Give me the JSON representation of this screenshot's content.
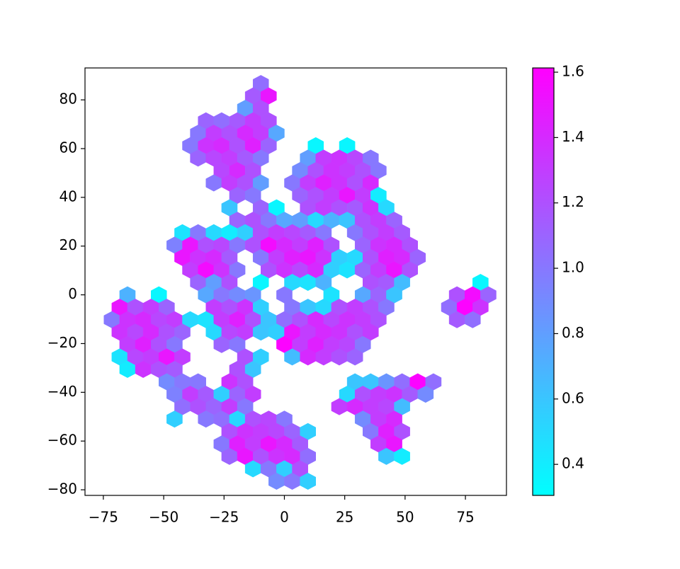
{
  "chart_data": {
    "type": "hexbin",
    "colormap": "cool",
    "xlim": [
      -82.6,
      92.0
    ],
    "ylim": [
      -82.3,
      93.1
    ],
    "clim": [
      0.305,
      1.613
    ],
    "xticks": [
      {
        "value": -75,
        "label": "−75"
      },
      {
        "value": -50,
        "label": "−50"
      },
      {
        "value": -25,
        "label": "−25"
      },
      0,
      25,
      50,
      75
    ],
    "yticks": [
      {
        "value": -80,
        "label": "−80"
      },
      {
        "value": -60,
        "label": "−60"
      },
      {
        "value": -40,
        "label": "−40"
      },
      {
        "value": -20,
        "label": "−20"
      },
      0,
      20,
      40,
      60,
      80
    ],
    "cticks": [
      0.4,
      0.6,
      0.8,
      {
        "value": 1,
        "label": "1.0"
      },
      1.2,
      1.4,
      1.6
    ],
    "x": [
      -9.75,
      -13,
      -6.5,
      -16.25,
      -9.75,
      -32.5,
      -26,
      -19.5,
      -13,
      -6.5,
      -35.75,
      -29.25,
      -22.75,
      -16.25,
      -9.75,
      -3.25,
      -39,
      -32.5,
      -26,
      -19.5,
      -13,
      -6.5,
      13,
      26,
      -35.75,
      -29.25,
      -22.75,
      -16.25,
      -9.75,
      9.75,
      16.25,
      22.75,
      29.25,
      35.75,
      -26,
      -19.5,
      -13,
      6.5,
      13,
      19.5,
      26,
      32.5,
      39,
      -29.25,
      -22.75,
      -16.25,
      -9.75,
      3.25,
      9.75,
      16.25,
      22.75,
      29.25,
      35.75,
      -19.5,
      -13,
      6.5,
      13,
      19.5,
      26,
      32.5,
      39,
      -22.75,
      -9.75,
      -3.25,
      9.75,
      16.25,
      22.75,
      29.25,
      35.75,
      42.25,
      -19.5,
      -13,
      -6.5,
      0,
      6.5,
      13,
      19.5,
      26,
      32.5,
      39,
      45.5,
      -42.25,
      -35.75,
      -29.25,
      -22.75,
      -16.25,
      -9.75,
      -3.25,
      3.25,
      9.75,
      16.25,
      29.25,
      35.75,
      42.25,
      48.75,
      -45.5,
      -39,
      -32.5,
      -26,
      -19.5,
      -13,
      -6.5,
      0,
      6.5,
      13,
      19.5,
      32.5,
      39,
      45.5,
      52,
      -42.25,
      -35.75,
      -29.25,
      -22.75,
      -9.75,
      -3.25,
      3.25,
      9.75,
      16.25,
      22.75,
      29.25,
      35.75,
      42.25,
      48.75,
      55.25,
      -39,
      -32.5,
      -26,
      -19.5,
      -6.5,
      0,
      6.5,
      13,
      19.5,
      26,
      32.5,
      39,
      45.5,
      52,
      -35.75,
      -29.25,
      -22.75,
      -9.75,
      3.25,
      9.75,
      16.25,
      35.75,
      42.25,
      48.75,
      81.25,
      -65,
      -52,
      -32.5,
      -26,
      -19.5,
      -13,
      0,
      19.5,
      32.5,
      39,
      45.5,
      71.5,
      78,
      84.5,
      -68.25,
      -61.75,
      -55.25,
      -48.75,
      -29.25,
      -22.75,
      -16.25,
      -9.75,
      3.25,
      9.75,
      16.25,
      22.75,
      29.25,
      35.75,
      42.25,
      68.25,
      74.75,
      81.25,
      -71.5,
      -65,
      -58.5,
      -52,
      -45.5,
      -39,
      -32.5,
      -26,
      -19.5,
      -13,
      -6.5,
      0,
      6.5,
      13,
      19.5,
      26,
      32.5,
      39,
      71.5,
      78,
      -68.25,
      -61.75,
      -55.25,
      -48.75,
      -42.25,
      -29.25,
      -22.75,
      -16.25,
      -9.75,
      -3.25,
      3.25,
      9.75,
      16.25,
      22.75,
      29.25,
      35.75,
      -65,
      -58.5,
      -52,
      -45.5,
      -26,
      -19.5,
      0,
      6.5,
      13,
      19.5,
      26,
      32.5,
      -68.25,
      -61.75,
      -55.25,
      -48.75,
      -42.25,
      -16.25,
      -9.75,
      3.25,
      9.75,
      16.25,
      22.75,
      29.25,
      -65,
      -58.5,
      -52,
      -45.5,
      -19.5,
      -13,
      -48.75,
      -42.25,
      -35.75,
      -22.75,
      -16.25,
      29.25,
      35.75,
      42.25,
      48.75,
      55.25,
      61.75,
      -45.5,
      -39,
      -32.5,
      -26,
      -19.5,
      -13,
      26,
      32.5,
      39,
      45.5,
      52,
      58.5,
      -42.25,
      -35.75,
      -29.25,
      -22.75,
      -16.25,
      22.75,
      29.25,
      35.75,
      42.25,
      48.75,
      -45.5,
      -32.5,
      -26,
      -19.5,
      -13,
      -6.5,
      0,
      32.5,
      39,
      45.5,
      -22.75,
      -16.25,
      -9.75,
      -3.25,
      3.25,
      9.75,
      35.75,
      42.25,
      48.75,
      -26,
      -19.5,
      -13,
      -6.5,
      0,
      6.5,
      39,
      45.5,
      -22.75,
      -16.25,
      -9.75,
      -3.25,
      3.25,
      9.75,
      42.25,
      48.75,
      -13,
      -6.5,
      0,
      6.5,
      -3.25,
      3.25,
      9.75
    ],
    "y": [
      86.7,
      81.6,
      81.6,
      76.5,
      76.5,
      71.4,
      71.4,
      71.4,
      71.4,
      71.4,
      66.3,
      66.3,
      66.3,
      66.3,
      66.3,
      66.3,
      61.2,
      61.2,
      61.2,
      61.2,
      61.2,
      61.2,
      61.2,
      61.2,
      56.1,
      56.1,
      56.1,
      56.1,
      56.1,
      56.1,
      56.1,
      56.1,
      56.1,
      56.1,
      51,
      51,
      51,
      51,
      51,
      51,
      51,
      51,
      51,
      45.9,
      45.9,
      45.9,
      45.9,
      45.9,
      45.9,
      45.9,
      45.9,
      45.9,
      45.9,
      40.8,
      40.8,
      40.8,
      40.8,
      40.8,
      40.8,
      40.8,
      40.8,
      35.7,
      35.7,
      35.7,
      35.7,
      35.7,
      35.7,
      35.7,
      35.7,
      35.7,
      30.6,
      30.6,
      30.6,
      30.6,
      30.6,
      30.6,
      30.6,
      30.6,
      30.6,
      30.6,
      30.6,
      25.5,
      25.5,
      25.5,
      25.5,
      25.5,
      25.5,
      25.5,
      25.5,
      25.5,
      25.5,
      25.5,
      25.5,
      25.5,
      25.5,
      20.4,
      20.4,
      20.4,
      20.4,
      20.4,
      20.4,
      20.4,
      20.4,
      20.4,
      20.4,
      20.4,
      20.4,
      20.4,
      20.4,
      20.4,
      15.3,
      15.3,
      15.3,
      15.3,
      15.3,
      15.3,
      15.3,
      15.3,
      15.3,
      15.3,
      15.3,
      15.3,
      15.3,
      15.3,
      15.3,
      10.2,
      10.2,
      10.2,
      10.2,
      10.2,
      10.2,
      10.2,
      10.2,
      10.2,
      10.2,
      10.2,
      10.2,
      10.2,
      10.2,
      5.1,
      5.1,
      5.1,
      5.1,
      5.1,
      5.1,
      5.1,
      5.1,
      5.1,
      5.1,
      5.1,
      0,
      0,
      0,
      0,
      0,
      0,
      0,
      0,
      0,
      0,
      0,
      0,
      0,
      0,
      -5.1,
      -5.1,
      -5.1,
      -5.1,
      -5.1,
      -5.1,
      -5.1,
      -5.1,
      -5.1,
      -5.1,
      -5.1,
      -5.1,
      -5.1,
      -5.1,
      -5.1,
      -5.1,
      -5.1,
      -5.1,
      -10.2,
      -10.2,
      -10.2,
      -10.2,
      -10.2,
      -10.2,
      -10.2,
      -10.2,
      -10.2,
      -10.2,
      -10.2,
      -10.2,
      -10.2,
      -10.2,
      -10.2,
      -10.2,
      -10.2,
      -10.2,
      -10.2,
      -10.2,
      -15.3,
      -15.3,
      -15.3,
      -15.3,
      -15.3,
      -15.3,
      -15.3,
      -15.3,
      -15.3,
      -15.3,
      -15.3,
      -15.3,
      -15.3,
      -15.3,
      -15.3,
      -15.3,
      -20.4,
      -20.4,
      -20.4,
      -20.4,
      -20.4,
      -20.4,
      -20.4,
      -20.4,
      -20.4,
      -20.4,
      -20.4,
      -20.4,
      -25.5,
      -25.5,
      -25.5,
      -25.5,
      -25.5,
      -25.5,
      -25.5,
      -25.5,
      -25.5,
      -25.5,
      -25.5,
      -25.5,
      -30.6,
      -30.6,
      -30.6,
      -30.6,
      -30.6,
      -30.6,
      -35.7,
      -35.7,
      -35.7,
      -35.7,
      -35.7,
      -35.7,
      -35.7,
      -35.7,
      -35.7,
      -35.7,
      -35.7,
      -40.8,
      -40.8,
      -40.8,
      -40.8,
      -40.8,
      -40.8,
      -40.8,
      -40.8,
      -40.8,
      -40.8,
      -40.8,
      -40.8,
      -45.9,
      -45.9,
      -45.9,
      -45.9,
      -45.9,
      -45.9,
      -45.9,
      -45.9,
      -45.9,
      -45.9,
      -51,
      -51,
      -51,
      -51,
      -51,
      -51,
      -51,
      -51,
      -51,
      -51,
      -56.1,
      -56.1,
      -56.1,
      -56.1,
      -56.1,
      -56.1,
      -56.1,
      -56.1,
      -56.1,
      -61.2,
      -61.2,
      -61.2,
      -61.2,
      -61.2,
      -61.2,
      -61.2,
      -61.2,
      -66.3,
      -66.3,
      -66.3,
      -66.3,
      -66.3,
      -66.3,
      -66.3,
      -66.3,
      -71.4,
      -71.4,
      -71.4,
      -71.4,
      -76.5,
      -76.5,
      -76.5
    ],
    "values": [
      1.05,
      1.15,
      1.5,
      0.8,
      1.2,
      1.1,
      1.05,
      1.15,
      1.3,
      1.2,
      1.0,
      1.3,
      1.2,
      1.4,
      1.3,
      0.75,
      1.0,
      1.35,
      1.4,
      1.2,
      1.45,
      1.1,
      0.35,
      0.35,
      1.1,
      1.25,
      1.3,
      1.15,
      1.0,
      0.8,
      1.3,
      1.35,
      1.25,
      1.0,
      1.25,
      1.4,
      1.2,
      0.9,
      1.2,
      1.35,
      1.3,
      1.2,
      1.0,
      1.0,
      1.3,
      1.2,
      0.8,
      1.0,
      1.3,
      1.45,
      1.35,
      1.2,
      1.4,
      1.1,
      1.0,
      1.1,
      1.2,
      1.3,
      1.5,
      1.3,
      0.4,
      0.6,
      1.1,
      0.35,
      1.2,
      1.3,
      1.2,
      1.15,
      1.35,
      0.5,
      1.1,
      1.2,
      1.0,
      0.75,
      0.8,
      0.5,
      0.7,
      0.6,
      1.2,
      1.3,
      1.1,
      0.45,
      1.0,
      0.5,
      0.4,
      0.55,
      1.2,
      1.3,
      1.25,
      1.15,
      1.0,
      1.0,
      1.2,
      1.3,
      1.15,
      0.95,
      1.5,
      1.2,
      1.25,
      1.0,
      1.2,
      1.55,
      1.4,
      1.3,
      1.45,
      1.2,
      1.1,
      1.35,
      1.4,
      1.2,
      1.5,
      1.35,
      1.4,
      1.15,
      1.0,
      1.3,
      1.45,
      1.5,
      1.35,
      0.55,
      0.5,
      1.2,
      1.45,
      1.4,
      1.1,
      1.3,
      1.55,
      1.35,
      1.0,
      1.2,
      1.35,
      1.25,
      1.4,
      0.55,
      0.45,
      1.1,
      1.3,
      1.5,
      1.2,
      1.1,
      0.8,
      1.2,
      0.35,
      0.5,
      0.45,
      0.7,
      1.2,
      1.15,
      0.65,
      0.35,
      0.7,
      0.35,
      0.75,
      1.0,
      0.9,
      0.85,
      1.0,
      0.45,
      0.75,
      1.1,
      0.6,
      1.2,
      1.55,
      1.1,
      1.5,
      1.2,
      1.3,
      1.1,
      1.3,
      1.2,
      1.35,
      0.55,
      1.0,
      0.6,
      0.5,
      1.2,
      1.3,
      1.2,
      1.0,
      1.05,
      1.6,
      1.35,
      1.0,
      1.35,
      1.4,
      1.25,
      1.3,
      0.5,
      0.45,
      1.3,
      1.45,
      1.2,
      0.6,
      1.05,
      1.2,
      1.4,
      1.25,
      1.35,
      1.3,
      1.2,
      1.15,
      1.05,
      1.35,
      1.25,
      1.4,
      1.2,
      1.1,
      0.5,
      1.25,
      1.3,
      0.6,
      0.55,
      1.5,
      1.3,
      1.4,
      1.35,
      1.2,
      1.3,
      1.3,
      1.45,
      1.2,
      1.0,
      1.1,
      1.0,
      1.6,
      1.3,
      1.45,
      1.3,
      1.25,
      1.0,
      0.45,
      1.25,
      1.3,
      1.5,
      1.3,
      1.2,
      0.55,
      0.65,
      1.4,
      1.3,
      1.2,
      1.1,
      0.4,
      1.35,
      1.2,
      1.15,
      1.2,
      0.6,
      0.9,
      1.0,
      1.0,
      1.35,
      1.2,
      0.6,
      0.6,
      0.85,
      1.05,
      1.6,
      1.05,
      0.95,
      1.3,
      1.15,
      0.55,
      1.1,
      1.3,
      0.5,
      1.2,
      1.3,
      1.35,
      1.15,
      0.9,
      1.05,
      1.2,
      1.1,
      1.3,
      1.0,
      1.3,
      1.4,
      1.3,
      1.25,
      0.65,
      0.55,
      1.0,
      1.05,
      0.5,
      1.2,
      1.25,
      1.0,
      0.9,
      1.3,
      1.4,
      1.2,
      1.35,
      1.3,
      1.25,
      1.1,
      0.55,
      1.0,
      1.45,
      1.2,
      1.0,
      1.45,
      1.3,
      1.5,
      1.4,
      1.15,
      1.3,
      1.5,
      1.1,
      1.5,
      1.2,
      1.35,
      1.4,
      1.05,
      0.6,
      0.4,
      0.5,
      1.0,
      0.55,
      1.2,
      0.9,
      1.0,
      0.55
    ]
  }
}
